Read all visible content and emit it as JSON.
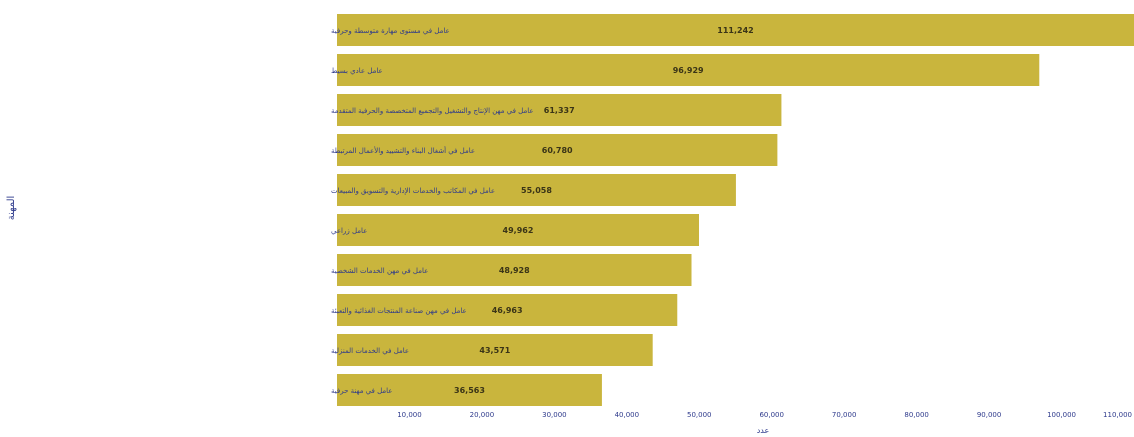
{
  "chart_data": {
    "type": "bar",
    "orientation": "horizontal",
    "title": "",
    "xlabel": "عدد",
    "ylabel": "المهنة",
    "xlim": [
      0,
      110000
    ],
    "x_ticks": [
      "10,000",
      "20,000",
      "30,000",
      "40,000",
      "50,000",
      "60,000",
      "70,000",
      "80,000",
      "90,000",
      "100,000",
      "110,000"
    ],
    "grid": false,
    "bar_color": "#c9b53d",
    "label_color": "#2e3a8c",
    "categories": [
      "عامل في مستوى مهارة متوسطة وحرفية",
      "عامل عادي بسيط",
      "عامل في مهن الإنتاج والتشغيل والتجميع المتخصصة والحرفية المتقدمة",
      "عامل في أشغال البناء والتشييد والأعمال المرتبطة",
      "عامل في المكاتب والخدمات الإدارية والتسويق والمبيعات",
      "عامل زراعي",
      "عامل في مهن الخدمات الشخصية",
      "عامل في مهن صناعة المنتجات الغذائية والتعبئة",
      "عامل في الخدمات المنزلية",
      "عامل في مهنة حرفية"
    ],
    "values": [
      111242,
      96929,
      61337,
      60780,
      55058,
      49962,
      48928,
      46963,
      43571,
      36563
    ],
    "value_labels": [
      "111,242",
      "96,929",
      "61,337",
      "60,780",
      "55,058",
      "49,962",
      "48,928",
      "46,963",
      "43,571",
      "36,563"
    ]
  }
}
